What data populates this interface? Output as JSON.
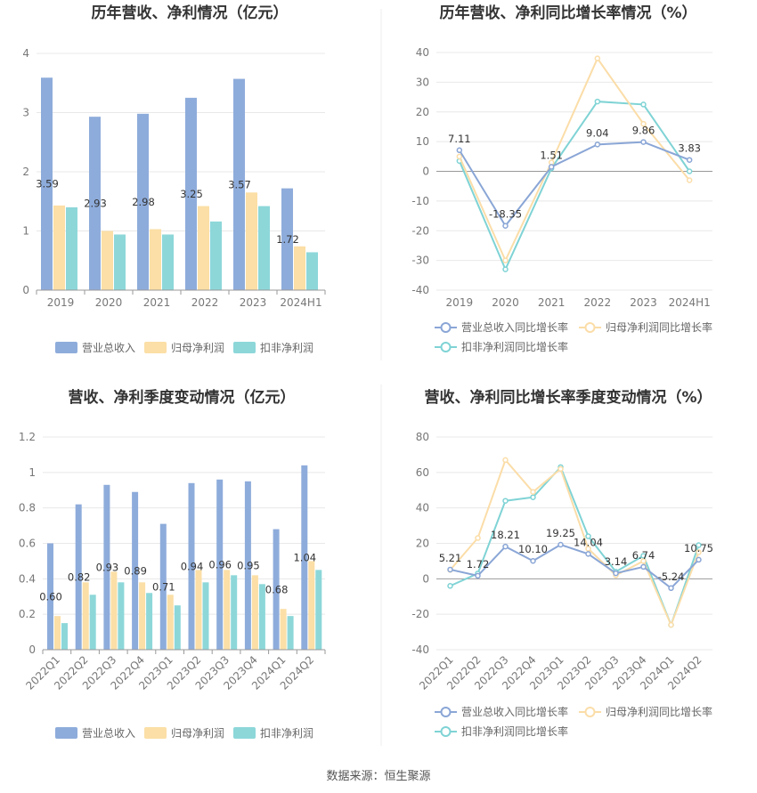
{
  "source_label": "数据来源：恒生聚源",
  "colors": {
    "revenue": "#8eacdb",
    "net_profit": "#fbdfa6",
    "deducted": "#8dd7d9",
    "revenue_line": "#8aa6d6",
    "net_line": "#fbdda8",
    "deducted_line": "#7fd3d5"
  },
  "chart_data": [
    {
      "id": "annual_bar",
      "type": "bar",
      "title": "历年营收、净利情况（亿元）",
      "categories": [
        "2019",
        "2020",
        "2021",
        "2022",
        "2023",
        "2024H1"
      ],
      "yticks": [
        "0",
        "1",
        "2",
        "3",
        "4"
      ],
      "ylim": [
        0,
        4
      ],
      "grid": true,
      "legend_position": "bottom",
      "series": [
        {
          "name": "营业总收入",
          "values": [
            3.59,
            2.93,
            2.98,
            3.25,
            3.57,
            1.72
          ],
          "labels": [
            "3.59",
            "2.93",
            "2.98",
            "3.25",
            "3.57",
            "1.72"
          ]
        },
        {
          "name": "归母净利润",
          "values": [
            1.43,
            1.0,
            1.03,
            1.42,
            1.65,
            0.74
          ]
        },
        {
          "name": "扣非净利润",
          "values": [
            1.4,
            0.94,
            0.94,
            1.16,
            1.42,
            0.64
          ]
        }
      ]
    },
    {
      "id": "annual_line",
      "type": "line",
      "title": "历年营收、净利同比增长率情况（%）",
      "categories": [
        "2019",
        "2020",
        "2021",
        "2022",
        "2023",
        "2024H1"
      ],
      "yticks": [
        "40",
        "30",
        "20",
        "10",
        "0",
        "-10",
        "-20",
        "-30",
        "-40"
      ],
      "ylim": [
        -40,
        40
      ],
      "grid": true,
      "legend_position": "bottom",
      "series": [
        {
          "name": "营业总收入同比增长率",
          "values": [
            7.11,
            -18.35,
            1.51,
            9.04,
            9.86,
            3.83
          ],
          "labels": [
            "7.11",
            "-18.35",
            "1.51",
            "9.04",
            "9.86",
            "3.83"
          ]
        },
        {
          "name": "归母净利润同比增长率",
          "values": [
            5.0,
            -30.0,
            3.0,
            38.0,
            16.0,
            -3.0
          ]
        },
        {
          "name": "扣非净利润同比增长率",
          "values": [
            3.5,
            -33.0,
            1.0,
            23.5,
            22.5,
            0.0
          ]
        }
      ]
    },
    {
      "id": "quarter_bar",
      "type": "bar",
      "title": "营收、净利季度变动情况（亿元）",
      "categories": [
        "2022Q1",
        "2022Q2",
        "2022Q3",
        "2022Q4",
        "2023Q1",
        "2023Q2",
        "2023Q3",
        "2023Q4",
        "2024Q1",
        "2024Q2"
      ],
      "yticks": [
        "0",
        "0.2",
        "0.4",
        "0.6",
        "0.8",
        "1",
        "1.2"
      ],
      "ylim": [
        0,
        1.2
      ],
      "grid": true,
      "legend_position": "bottom",
      "series": [
        {
          "name": "营业总收入",
          "values": [
            0.6,
            0.82,
            0.93,
            0.89,
            0.71,
            0.94,
            0.96,
            0.95,
            0.68,
            1.04
          ],
          "labels": [
            "0.60",
            "0.82",
            "0.93",
            "0.89",
            "0.71",
            "0.94",
            "0.96",
            "0.95",
            "0.68",
            "1.04"
          ]
        },
        {
          "name": "归母净利润",
          "values": [
            0.19,
            0.38,
            0.44,
            0.38,
            0.31,
            0.45,
            0.45,
            0.42,
            0.23,
            0.5
          ]
        },
        {
          "name": "扣非净利润",
          "values": [
            0.15,
            0.31,
            0.38,
            0.32,
            0.25,
            0.38,
            0.42,
            0.37,
            0.19,
            0.45
          ]
        }
      ]
    },
    {
      "id": "quarter_line",
      "type": "line",
      "title": "营收、净利同比增长率季度变动情况（%）",
      "categories": [
        "2022Q1",
        "2022Q2",
        "2022Q3",
        "2022Q4",
        "2023Q1",
        "2023Q2",
        "2023Q3",
        "2023Q4",
        "2024Q1",
        "2024Q2"
      ],
      "yticks": [
        "80",
        "60",
        "40",
        "20",
        "0",
        "-20",
        "-40"
      ],
      "ylim": [
        -40,
        80
      ],
      "grid": true,
      "legend_position": "bottom",
      "series": [
        {
          "name": "营业总收入同比增长率",
          "values": [
            5.21,
            1.72,
            18.21,
            10.1,
            19.25,
            14.04,
            3.14,
            6.74,
            -5.24,
            10.75
          ],
          "labels": [
            "5.21",
            "1.72",
            "18.21",
            "10.10",
            "19.25",
            "14.04",
            "3.14",
            "6.74",
            "-5.24",
            "10.75"
          ]
        },
        {
          "name": "归母净利润同比增长率",
          "values": [
            5.0,
            23.0,
            67.0,
            49.0,
            62.0,
            17.0,
            2.0,
            10.0,
            -26.0,
            15.0
          ]
        },
        {
          "name": "扣非净利润同比增长率",
          "values": [
            -4.0,
            3.0,
            44.0,
            46.0,
            63.0,
            24.0,
            4.0,
            13.0,
            -26.0,
            19.0
          ]
        }
      ]
    }
  ]
}
